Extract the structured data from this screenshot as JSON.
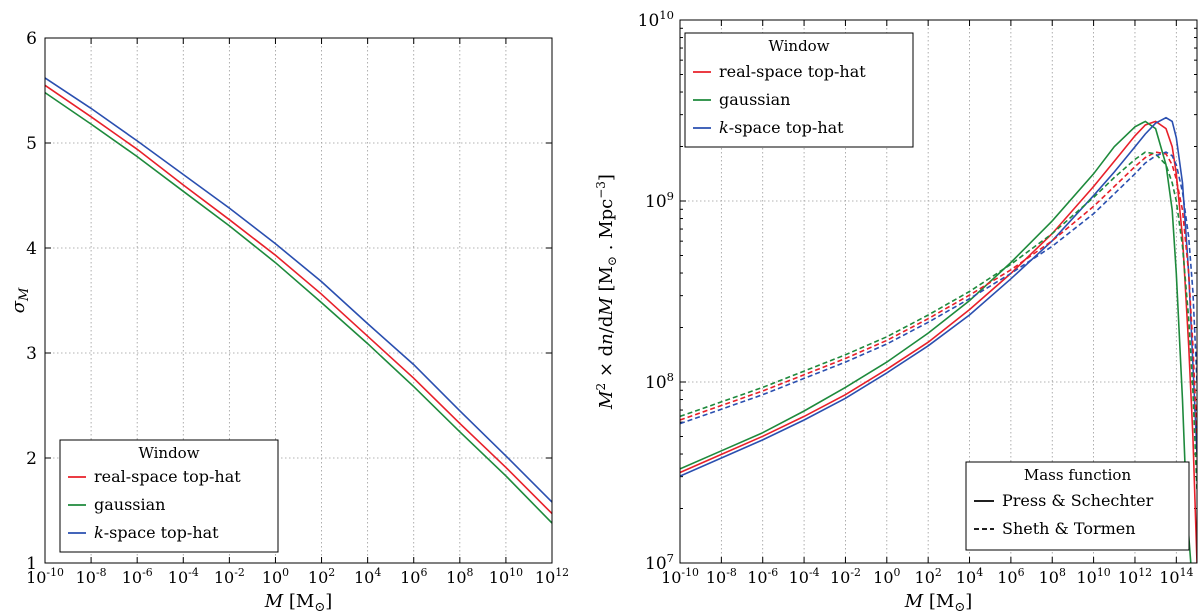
{
  "colors": {
    "real": "#e8202a",
    "gauss": "#1e8a3c",
    "kspace": "#2a4fb0"
  },
  "chart_data": [
    {
      "type": "line",
      "xlabel": "M [M⊙]",
      "ylabel": "σ_M",
      "xscale": "log",
      "xlim_log10": [
        -10,
        12
      ],
      "ylim": [
        1,
        6
      ],
      "x_tick_labels": [
        "10^-10",
        "10^-8",
        "10^-6",
        "10^-4",
        "10^-2",
        "10^0",
        "10^2",
        "10^4",
        "10^6",
        "10^8",
        "10^10",
        "10^12"
      ],
      "y_tick_labels": [
        "1",
        "2",
        "3",
        "4",
        "5",
        "6"
      ],
      "grid": true,
      "legend": {
        "title": "Window",
        "placement": "bottom-left",
        "entries": [
          {
            "label": "real-space top-hat",
            "color_key": "real"
          },
          {
            "label": "gaussian",
            "color_key": "gauss"
          },
          {
            "label": "k-space top-hat",
            "color_key": "kspace"
          }
        ]
      },
      "series": [
        {
          "name": "real-space top-hat",
          "color_key": "real",
          "x_log10": [
            -10,
            -8,
            -6,
            -4,
            -2,
            0,
            2,
            4,
            6,
            8,
            10,
            12
          ],
          "y": [
            5.55,
            5.25,
            4.94,
            4.6,
            4.27,
            3.93,
            3.56,
            3.16,
            2.76,
            2.33,
            1.91,
            1.47
          ]
        },
        {
          "name": "gaussian",
          "color_key": "gauss",
          "x_log10": [
            -10,
            -8,
            -6,
            -4,
            -2,
            0,
            2,
            4,
            6,
            8,
            10,
            12
          ],
          "y": [
            5.48,
            5.18,
            4.87,
            4.54,
            4.21,
            3.86,
            3.48,
            3.09,
            2.68,
            2.25,
            1.83,
            1.38
          ]
        },
        {
          "name": "k-space top-hat",
          "color_key": "kspace",
          "x_log10": [
            -10,
            -8,
            -6,
            -4,
            -2,
            0,
            2,
            4,
            6,
            8,
            10,
            12
          ],
          "y": [
            5.62,
            5.33,
            5.02,
            4.7,
            4.38,
            4.04,
            3.68,
            3.28,
            2.89,
            2.45,
            2.02,
            1.58
          ]
        }
      ]
    },
    {
      "type": "line",
      "xlabel": "M [M⊙]",
      "ylabel": "M² × dn/dM [M⊙ . Mpc⁻³]",
      "xscale": "log",
      "yscale": "log",
      "xlim_log10": [
        -10,
        15
      ],
      "ylim_log10": [
        7,
        10
      ],
      "x_tick_labels": [
        "10^-10",
        "10^-8",
        "10^-6",
        "10^-4",
        "10^-2",
        "10^0",
        "10^2",
        "10^4",
        "10^6",
        "10^8",
        "10^10",
        "10^12",
        "10^14"
      ],
      "y_tick_labels": [
        "10^7",
        "10^8",
        "10^9",
        "10^10"
      ],
      "grid": true,
      "legends": [
        {
          "title": "Window",
          "placement": "top-left",
          "entries": [
            {
              "label": "real-space top-hat",
              "color_key": "real"
            },
            {
              "label": "gaussian",
              "color_key": "gauss"
            },
            {
              "label": "k-space top-hat",
              "color_key": "kspace"
            }
          ]
        },
        {
          "title": "Mass function",
          "placement": "bottom-right",
          "entries": [
            {
              "label": "Press & Schechter",
              "style": "solid"
            },
            {
              "label": "Sheth & Tormen",
              "style": "dashed"
            }
          ]
        }
      ],
      "series": [
        {
          "name": "real-space top-hat",
          "color_key": "real",
          "style": "solid",
          "x_log10": [
            -10,
            -8,
            -6,
            -4,
            -2,
            0,
            2,
            4,
            6,
            8,
            10,
            11,
            12,
            12.5,
            13,
            13.5,
            13.8,
            14,
            14.3,
            14.6,
            14.8,
            15
          ],
          "y_log10": [
            7.5,
            7.6,
            7.7,
            7.81,
            7.93,
            8.07,
            8.22,
            8.4,
            8.6,
            8.82,
            9.08,
            9.22,
            9.36,
            9.42,
            9.44,
            9.4,
            9.3,
            9.15,
            8.8,
            8.2,
            7.7,
            7.0
          ]
        },
        {
          "name": "gaussian",
          "color_key": "gauss",
          "style": "solid",
          "x_log10": [
            -10,
            -8,
            -6,
            -4,
            -2,
            0,
            2,
            4,
            6,
            8,
            10,
            11,
            12,
            12.5,
            13,
            13.5,
            13.8,
            14,
            14.3,
            14.5,
            14.7
          ],
          "y_log10": [
            7.52,
            7.62,
            7.72,
            7.84,
            7.97,
            8.11,
            8.27,
            8.45,
            8.66,
            8.89,
            9.15,
            9.3,
            9.41,
            9.44,
            9.4,
            9.2,
            8.95,
            8.6,
            7.9,
            7.3,
            7.0
          ]
        },
        {
          "name": "k-space top-hat",
          "color_key": "kspace",
          "style": "solid",
          "x_log10": [
            -10,
            -8,
            -6,
            -4,
            -2,
            0,
            2,
            4,
            6,
            8,
            10,
            11,
            12,
            12.5,
            13,
            13.5,
            13.8,
            14,
            14.3,
            14.6,
            14.8,
            15
          ],
          "y_log10": [
            7.48,
            7.58,
            7.68,
            7.79,
            7.91,
            8.05,
            8.2,
            8.37,
            8.57,
            8.78,
            9.03,
            9.16,
            9.3,
            9.37,
            9.43,
            9.46,
            9.44,
            9.35,
            9.1,
            8.6,
            8.1,
            7.6
          ]
        },
        {
          "name": "real-space top-hat",
          "color_key": "real",
          "style": "dashed",
          "x_log10": [
            -10,
            -8,
            -6,
            -4,
            -2,
            0,
            2,
            4,
            6,
            8,
            10,
            11,
            12,
            12.5,
            13,
            13.5,
            13.8,
            14,
            14.3,
            14.6,
            14.8,
            15
          ],
          "y_log10": [
            7.79,
            7.87,
            7.95,
            8.04,
            8.13,
            8.23,
            8.35,
            8.48,
            8.62,
            8.78,
            8.97,
            9.08,
            9.19,
            9.24,
            9.27,
            9.26,
            9.2,
            9.12,
            8.95,
            8.6,
            8.2,
            7.7
          ]
        },
        {
          "name": "gaussian",
          "color_key": "gauss",
          "style": "dashed",
          "x_log10": [
            -10,
            -8,
            -6,
            -4,
            -2,
            0,
            2,
            4,
            6,
            8,
            10,
            11,
            12,
            12.5,
            13,
            13.5,
            13.8,
            14,
            14.3,
            14.6,
            14.8,
            15
          ],
          "y_log10": [
            7.81,
            7.89,
            7.97,
            8.06,
            8.15,
            8.25,
            8.37,
            8.5,
            8.65,
            8.82,
            9.02,
            9.13,
            9.23,
            9.27,
            9.26,
            9.2,
            9.1,
            9.0,
            8.75,
            8.35,
            7.95,
            7.4
          ]
        },
        {
          "name": "k-space top-hat",
          "color_key": "kspace",
          "style": "dashed",
          "x_log10": [
            -10,
            -8,
            -6,
            -4,
            -2,
            0,
            2,
            4,
            6,
            8,
            10,
            11,
            12,
            12.5,
            13,
            13.5,
            13.8,
            14,
            14.3,
            14.6,
            14.8,
            15
          ],
          "y_log10": [
            7.77,
            7.85,
            7.93,
            8.02,
            8.11,
            8.21,
            8.33,
            8.46,
            8.6,
            8.75,
            8.93,
            9.04,
            9.15,
            9.21,
            9.25,
            9.27,
            9.25,
            9.2,
            9.05,
            8.8,
            8.5,
            8.0
          ]
        }
      ]
    }
  ]
}
